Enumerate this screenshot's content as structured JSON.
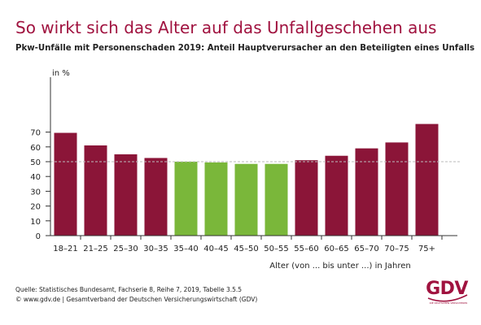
{
  "header": {
    "title": "So wirkt sich das Alter auf das Unfallgeschehen aus",
    "subtitle": "Pkw-Unfälle mit Personenschaden 2019: Anteil Hauptverursacher an den Beteiligten eines Unfalls"
  },
  "footer": {
    "source_line1": "Quelle: Statistisches Bundesamt, Fachserie 8, Reihe 7, 2019, Tabelle 3.5.5",
    "source_line2": "© www.gdv.de | Gesamtverband der Deutschen Versicherungswirtschaft (GDV)"
  },
  "logo": {
    "text": "GDV",
    "tagline": "DIE DEUTSCHEN VERSICHERER"
  },
  "colors": {
    "above": "#8b1538",
    "below": "#7ab73a",
    "title": "#a0123f",
    "reference_line": "#bbbbbb"
  },
  "chart_data": {
    "type": "bar",
    "title": "So wirkt sich das Alter auf das Unfallgeschehen aus",
    "subtitle": "Pkw-Unfälle mit Personenschaden 2019: Anteil Hauptverursacher an den Beteiligten eines Unfalls",
    "ylabel": "in %",
    "xlabel": "Alter (von ... bis unter ...) in Jahren",
    "categories": [
      "18–21",
      "21–25",
      "25–30",
      "30–35",
      "35–40",
      "40–45",
      "45–50",
      "50–55",
      "55–60",
      "60–65",
      "65–70",
      "70–75",
      "75+"
    ],
    "values": [
      69.5,
      61.0,
      55.0,
      52.5,
      50.0,
      49.5,
      48.5,
      48.5,
      51.0,
      54.0,
      59.0,
      63.0,
      75.5
    ],
    "ylim": [
      0,
      80
    ],
    "yticks": [
      0,
      10,
      20,
      30,
      40,
      50,
      60,
      70
    ],
    "reference_line": 50,
    "grid": false,
    "legend": "none"
  }
}
